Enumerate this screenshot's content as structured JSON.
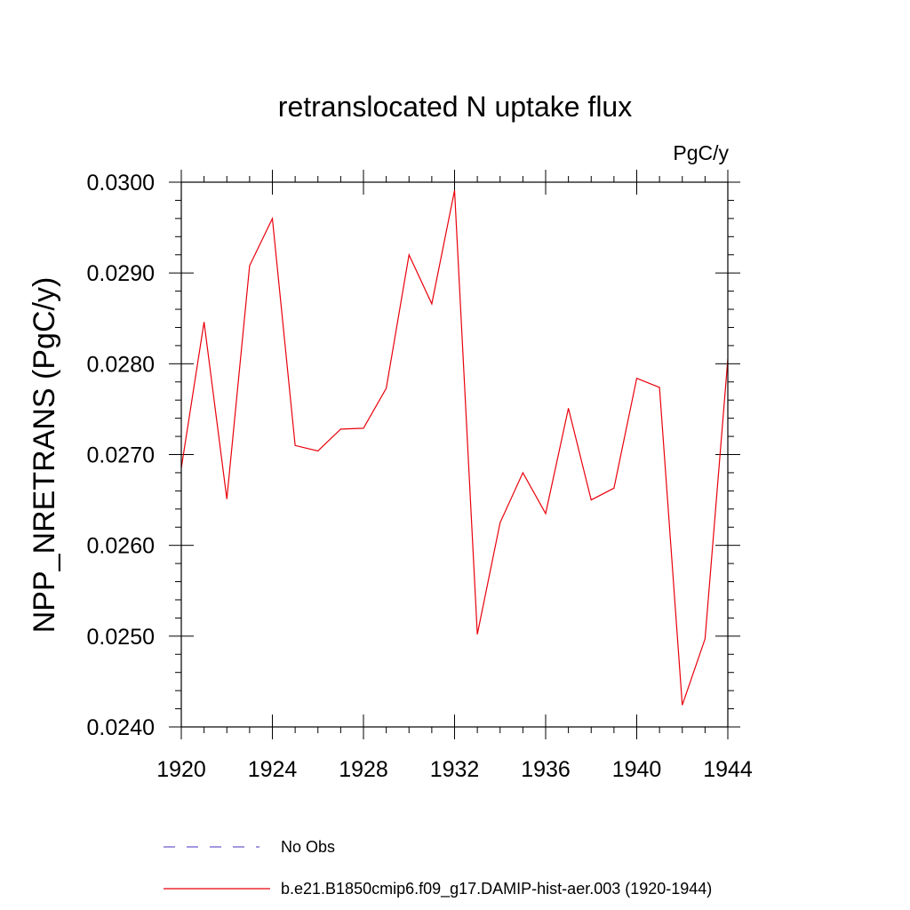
{
  "chart_data": {
    "type": "line",
    "title": "retranslocated N uptake flux",
    "units_label": "PgC/y",
    "ylabel": "NPP_NRETRANS  (PgC/y)",
    "xlabel": "",
    "xlim": [
      1920,
      1944
    ],
    "ylim": [
      0.024,
      0.03
    ],
    "x_ticks": [
      1920,
      1924,
      1928,
      1932,
      1936,
      1940,
      1944
    ],
    "x_tick_labels": [
      "1920",
      "1924",
      "1928",
      "1932",
      "1936",
      "1940",
      "1944"
    ],
    "y_ticks": [
      0.024,
      0.025,
      0.026,
      0.027,
      0.028,
      0.029,
      0.03
    ],
    "y_tick_labels": [
      "0.0240",
      "0.0250",
      "0.0260",
      "0.0270",
      "0.0280",
      "0.0290",
      "0.0300"
    ],
    "grid": false,
    "legend_position": "bottom",
    "legend": [
      {
        "label": "No Obs",
        "color": "#6a5acd",
        "style": "dashed"
      },
      {
        "label": "b.e21.B1850cmip6.f09_g17.DAMIP-hist-aer.003 (1920-1944)",
        "color": "#e8000b",
        "style": "solid"
      }
    ],
    "series": [
      {
        "name": "b.e21.B1850cmip6.f09_g17.DAMIP-hist-aer.003 (1920-1944)",
        "color": "#e8000b",
        "x": [
          1920,
          1921,
          1922,
          1923,
          1924,
          1925,
          1926,
          1927,
          1928,
          1929,
          1930,
          1931,
          1932,
          1933,
          1934,
          1935,
          1936,
          1937,
          1938,
          1939,
          1940,
          1941,
          1942,
          1943,
          1944
        ],
        "values": [
          0.02685,
          0.02846,
          0.02651,
          0.02908,
          0.0296,
          0.0271,
          0.02704,
          0.02728,
          0.02729,
          0.02773,
          0.0292,
          0.02866,
          0.02991,
          0.02502,
          0.02625,
          0.0268,
          0.02635,
          0.02751,
          0.0265,
          0.02663,
          0.02784,
          0.02774,
          0.02424,
          0.02497,
          0.02805
        ]
      }
    ]
  }
}
